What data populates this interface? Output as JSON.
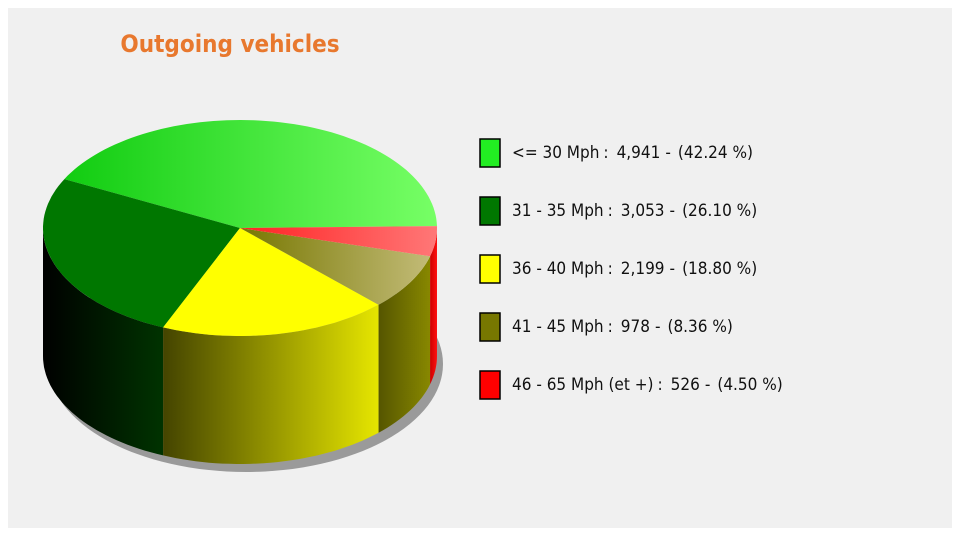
{
  "chart_data": {
    "type": "pie3d",
    "title": "Outgoing vehicles",
    "categories": [
      "<= 30 Mph",
      "31 - 35 Mph",
      "36 - 40 Mph",
      "41 - 45 Mph",
      "46 - 65 Mph (et +)"
    ],
    "values": [
      4941,
      3053,
      2199,
      978,
      526
    ],
    "value_labels": [
      "4,941",
      "3,053",
      "2,199",
      "978",
      "526"
    ],
    "percents": [
      42.24,
      26.1,
      18.8,
      8.36,
      4.5
    ],
    "percent_labels": [
      "(42.24 %)",
      "(26.10 %)",
      "(18.80 %)",
      "(8.36 %)",
      "(4.50 %)"
    ],
    "legend_separators": [
      ":",
      "-"
    ],
    "colors": [
      "#22ee22",
      "#007700",
      "#ffff00",
      "#777700",
      "#ff0000"
    ],
    "legend": "right"
  }
}
